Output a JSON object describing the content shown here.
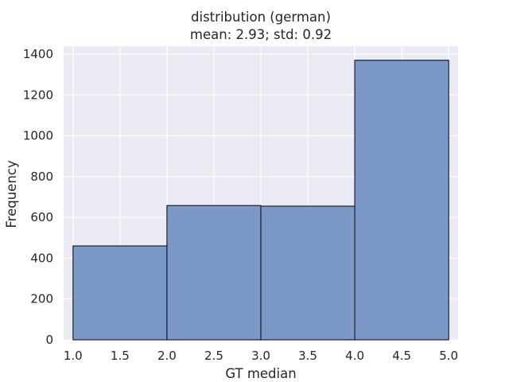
{
  "chart_data": {
    "type": "bar",
    "title": "distribution (german)",
    "subtitle": "mean: 2.93; std: 0.92",
    "xlabel": "GT median",
    "ylabel": "Frequency",
    "bins": [
      {
        "x0": 1.0,
        "x1": 2.0,
        "value": 460
      },
      {
        "x0": 2.0,
        "x1": 3.0,
        "value": 658
      },
      {
        "x0": 3.0,
        "x1": 4.0,
        "value": 655
      },
      {
        "x0": 4.0,
        "x1": 5.0,
        "value": 1370
      }
    ],
    "xlim": [
      0.9,
      5.1
    ],
    "ylim": [
      0,
      1439
    ],
    "xticks": [
      1.0,
      1.5,
      2.0,
      2.5,
      3.0,
      3.5,
      4.0,
      4.5,
      5.0
    ],
    "xtick_labels": [
      "1.0",
      "1.5",
      "2.0",
      "2.5",
      "3.0",
      "3.5",
      "4.0",
      "4.5",
      "5.0"
    ],
    "yticks": [
      0,
      200,
      400,
      600,
      800,
      1000,
      1200,
      1400
    ],
    "ytick_labels": [
      "0",
      "200",
      "400",
      "600",
      "800",
      "1000",
      "1200",
      "1400"
    ],
    "grid": true,
    "legend": "none",
    "colors": {
      "bar_fill": "#7b98c6",
      "bar_edge": "#1c2230",
      "plot_background": "#eaeaf2",
      "grid": "#ffffff",
      "text": "#262626"
    }
  }
}
